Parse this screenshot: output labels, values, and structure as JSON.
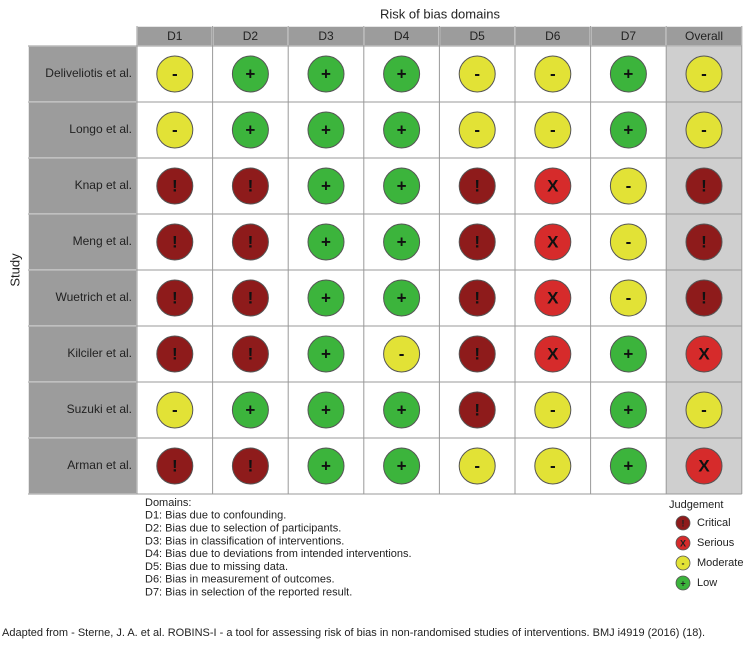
{
  "title": "Risk of bias domains",
  "y_label": "Study",
  "columns": [
    "D1",
    "D2",
    "D3",
    "D4",
    "D5",
    "D6",
    "D7",
    "Overall"
  ],
  "rows": [
    {
      "study": "Deliveliotis et al.",
      "judgements": [
        "-",
        "+",
        "+",
        "+",
        "-",
        "-",
        "+",
        "-"
      ]
    },
    {
      "study": "Longo et al.",
      "judgements": [
        "-",
        "+",
        "+",
        "+",
        "-",
        "-",
        "+",
        "-"
      ]
    },
    {
      "study": "Knap et al.",
      "judgements": [
        "!",
        "!",
        "+",
        "+",
        "!",
        "X",
        "-",
        "!"
      ]
    },
    {
      "study": "Meng et al.",
      "judgements": [
        "!",
        "!",
        "+",
        "+",
        "!",
        "X",
        "-",
        "!"
      ]
    },
    {
      "study": "Wuetrich et al.",
      "judgements": [
        "!",
        "!",
        "+",
        "+",
        "!",
        "X",
        "-",
        "!"
      ]
    },
    {
      "study": "Kilciler et al.",
      "judgements": [
        "!",
        "!",
        "+",
        "-",
        "!",
        "X",
        "+",
        "X"
      ]
    },
    {
      "study": "Suzuki et al.",
      "judgements": [
        "-",
        "+",
        "+",
        "+",
        "!",
        "-",
        "+",
        "-"
      ]
    },
    {
      "study": "Arman et al.",
      "judgements": [
        "!",
        "!",
        "+",
        "+",
        "-",
        "-",
        "+",
        "X"
      ]
    }
  ],
  "domains": {
    "title": "Domains:",
    "items": [
      "D1: Bias due to confounding.",
      "D2: Bias due to selection of participants.",
      "D3: Bias in classification of interventions.",
      "D4: Bias due to deviations from intended interventions.",
      "D5: Bias due to missing data.",
      "D6: Bias in measurement of outcomes.",
      "D7: Bias in selection of the reported result."
    ]
  },
  "legend": {
    "title": "Judgement",
    "items": [
      {
        "symbol": "!",
        "label": "Critical",
        "color": "#8e1b1b"
      },
      {
        "symbol": "X",
        "label": "Serious",
        "color": "#d62b2b"
      },
      {
        "symbol": "-",
        "label": "Moderate",
        "color": "#e2e236"
      },
      {
        "symbol": "+",
        "label": "Low",
        "color": "#3cb43c"
      }
    ]
  },
  "caption": "Adapted from - Sterne, J. A. et al. ROBINS-I - a tool for assessing risk of bias in non-randomised studies of interventions. BMJ i4919 (2016) (18)."
}
